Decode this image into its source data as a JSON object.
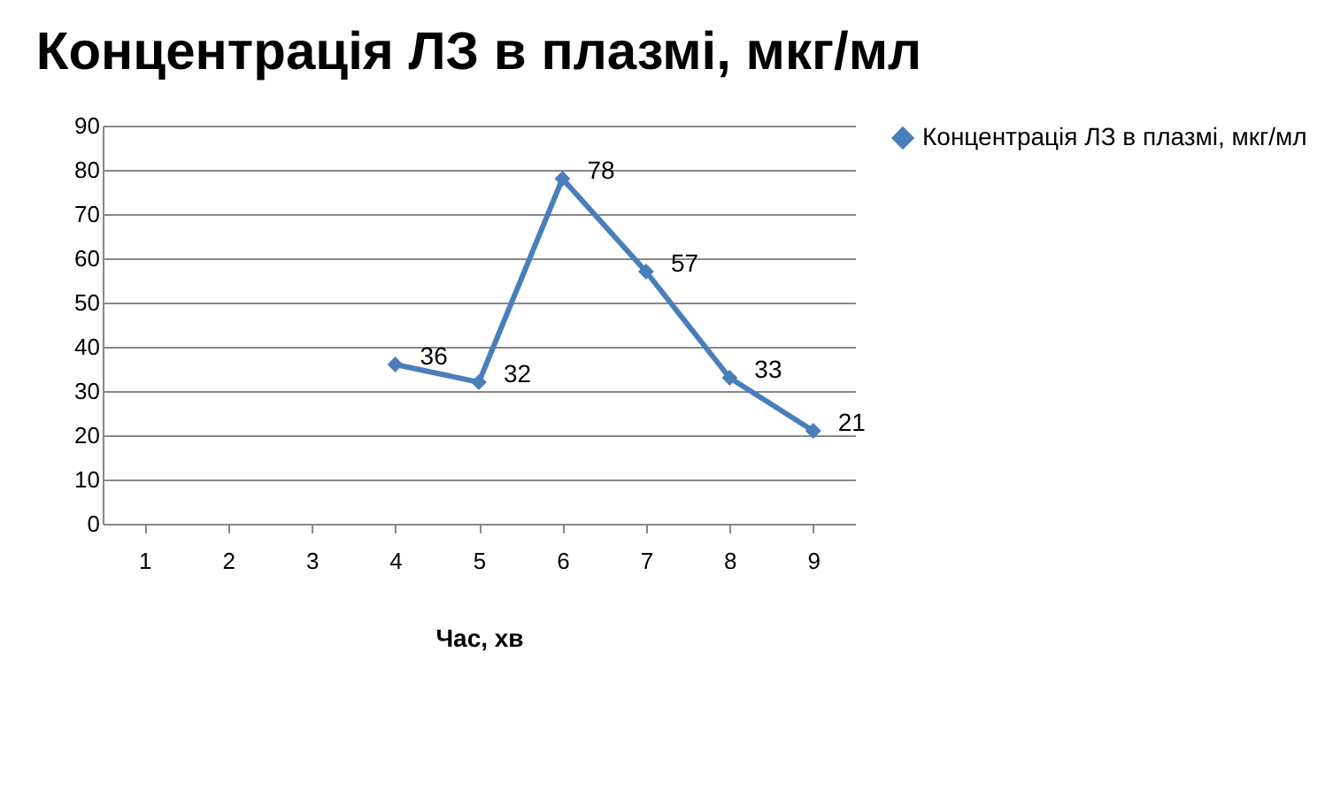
{
  "chart_data": {
    "type": "line",
    "title": "Концентрація ЛЗ в плазмі, мкг/мл",
    "xlabel": "Час, хв",
    "categories": [
      "1",
      "2",
      "3",
      "4",
      "5",
      "6",
      "7",
      "8",
      "9"
    ],
    "series": [
      {
        "name": "Концентрація ЛЗ в плазмі, мкг/мл",
        "color": "#4a7ebb",
        "values": [
          null,
          null,
          null,
          36,
          32,
          78,
          57,
          33,
          21
        ]
      }
    ],
    "ylim": [
      0,
      90
    ],
    "yticks": [
      0,
      10,
      20,
      30,
      40,
      50,
      60,
      70,
      80,
      90
    ],
    "grid": "y",
    "legend": "right",
    "marker": "diamond",
    "data_labels": true
  }
}
